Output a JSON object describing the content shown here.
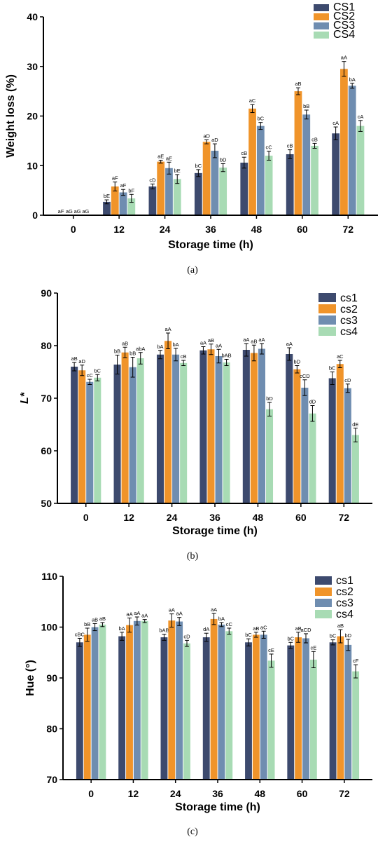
{
  "chart_data": [
    {
      "type": "bar",
      "panel_label": "(a)",
      "categories": [
        "0",
        "12",
        "24",
        "36",
        "48",
        "60",
        "72"
      ],
      "xlabel": "Storage time (h)",
      "ylabel": "Weight loss (%)",
      "ylim": [
        0,
        40
      ],
      "yticks": [
        "0",
        "10",
        "20",
        "30",
        "40"
      ],
      "legend_position": "top-right",
      "series": [
        {
          "name": "CS1",
          "color": "#3d4a6e",
          "values": [
            0,
            2.7,
            5.8,
            8.5,
            10.6,
            12.3,
            16.5
          ],
          "errors": [
            0,
            0.4,
            0.5,
            0.7,
            1.1,
            0.9,
            1.3
          ],
          "labels": [
            "aF",
            "bE",
            "cD",
            "bC",
            "cB",
            "cB",
            "cA"
          ]
        },
        {
          "name": "CS2",
          "color": "#f0942a",
          "values": [
            0,
            5.8,
            10.8,
            14.8,
            21.5,
            25.0,
            29.5
          ],
          "errors": [
            0,
            0.9,
            0.3,
            0.4,
            0.8,
            0.7,
            1.5
          ],
          "labels": [
            "aG",
            "aF",
            "aE",
            "aD",
            "aC",
            "aB",
            "aA"
          ]
        },
        {
          "name": "CS3",
          "color": "#6f8db0",
          "values": [
            0,
            4.6,
            9.5,
            13.0,
            18.0,
            20.3,
            26.1
          ],
          "errors": [
            0,
            0.6,
            1.2,
            1.4,
            0.7,
            0.9,
            0.5
          ],
          "labels": [
            "aG",
            "aF",
            "aE",
            "aD",
            "bC",
            "bB",
            "bA"
          ]
        },
        {
          "name": "CS4",
          "color": "#a8dbb4",
          "values": [
            0,
            3.4,
            7.3,
            9.6,
            12.0,
            14.0,
            18.0
          ],
          "errors": [
            0,
            0.8,
            0.9,
            0.8,
            0.9,
            0.5,
            1.1
          ],
          "labels": [
            "aG",
            "bF",
            "bE",
            "bD",
            "cC",
            "cB",
            "cA"
          ]
        }
      ]
    },
    {
      "type": "bar",
      "panel_label": "(b)",
      "categories": [
        "0",
        "12",
        "24",
        "36",
        "48",
        "60",
        "72"
      ],
      "xlabel": "Storage time (h)",
      "ylabel": "L*",
      "ylim": [
        50,
        90
      ],
      "yticks": [
        "50",
        "60",
        "70",
        "80",
        "90"
      ],
      "legend_position": "top-right",
      "series": [
        {
          "name": "cs1",
          "color": "#3d4a6e",
          "values": [
            76.0,
            76.4,
            78.3,
            79.1,
            79.2,
            78.4,
            73.8
          ],
          "errors": [
            0.8,
            1.8,
            0.8,
            0.7,
            1.2,
            1.2,
            1.2
          ],
          "labels": [
            "aB",
            "bB",
            "bA",
            "aA",
            "aA",
            "aA",
            "bC"
          ]
        },
        {
          "name": "cs2",
          "color": "#f0942a",
          "values": [
            75.3,
            78.7,
            80.9,
            79.3,
            78.6,
            75.5,
            76.5
          ],
          "errors": [
            1.0,
            1.0,
            1.5,
            1.0,
            1.5,
            0.7,
            0.7
          ],
          "labels": [
            "aD",
            "aB",
            "aA",
            "aB",
            "aB",
            "bD",
            "aC"
          ]
        },
        {
          "name": "cs3",
          "color": "#6f8db0",
          "values": [
            73.1,
            75.9,
            78.3,
            78.0,
            79.4,
            72.0,
            71.9
          ],
          "errors": [
            0.5,
            1.9,
            1.2,
            1.3,
            1.0,
            1.5,
            0.8
          ],
          "labels": [
            "cC",
            "bB",
            "bA",
            "aA",
            "aA",
            "cCD",
            "cD"
          ]
        },
        {
          "name": "cs4",
          "color": "#a8dbb4",
          "values": [
            73.9,
            77.6,
            76.7,
            76.8,
            67.9,
            67.1,
            63.0
          ],
          "errors": [
            0.6,
            1.1,
            0.5,
            0.6,
            1.3,
            1.5,
            1.3
          ],
          "labels": [
            "bC",
            "abA",
            "cB",
            "bAB",
            "bD",
            "dD",
            "dE"
          ]
        }
      ]
    },
    {
      "type": "bar",
      "panel_label": "(c)",
      "categories": [
        "0",
        "12",
        "24",
        "36",
        "48",
        "60",
        "72"
      ],
      "xlabel": "Storage time (h)",
      "ylabel": "Hue (°)",
      "ylim": [
        70,
        110
      ],
      "yticks": [
        "70",
        "80",
        "90",
        "100",
        "110"
      ],
      "legend_position": "top-right",
      "series": [
        {
          "name": "cs1",
          "color": "#3d4a6e",
          "values": [
            97.0,
            98.2,
            98.0,
            98.0,
            97.0,
            96.4,
            97.0
          ],
          "errors": [
            0.8,
            0.8,
            0.6,
            0.8,
            0.7,
            0.6,
            0.5
          ],
          "labels": [
            "cBC",
            "bA",
            "bAB",
            "dA",
            "bC",
            "bC",
            "bC"
          ]
        },
        {
          "name": "cs2",
          "color": "#f0942a",
          "values": [
            98.5,
            100.4,
            101.3,
            101.6,
            98.5,
            98.0,
            98.2
          ],
          "errors": [
            1.3,
            1.4,
            1.3,
            1.1,
            0.5,
            1.0,
            1.3
          ],
          "labels": [
            "bB",
            "aA",
            "aA",
            "aA",
            "aB",
            "aB",
            "aB"
          ]
        },
        {
          "name": "cs3",
          "color": "#6f8db0",
          "values": [
            100.0,
            101.2,
            101.1,
            100.5,
            98.5,
            97.8,
            96.5
          ],
          "errors": [
            0.7,
            0.8,
            0.8,
            0.4,
            0.7,
            0.9,
            1.1
          ],
          "labels": [
            "aB",
            "aA",
            "aA",
            "bA",
            "aC",
            "aCD",
            "bD"
          ]
        },
        {
          "name": "cs4",
          "color": "#a8dbb4",
          "values": [
            100.5,
            101.2,
            96.8,
            99.2,
            93.4,
            93.6,
            91.3
          ],
          "errors": [
            0.4,
            0.3,
            0.6,
            0.6,
            1.3,
            1.6,
            1.3
          ],
          "labels": [
            "aB",
            "aA",
            "cD",
            "cC",
            "cE",
            "cE",
            "cF"
          ]
        }
      ]
    }
  ]
}
